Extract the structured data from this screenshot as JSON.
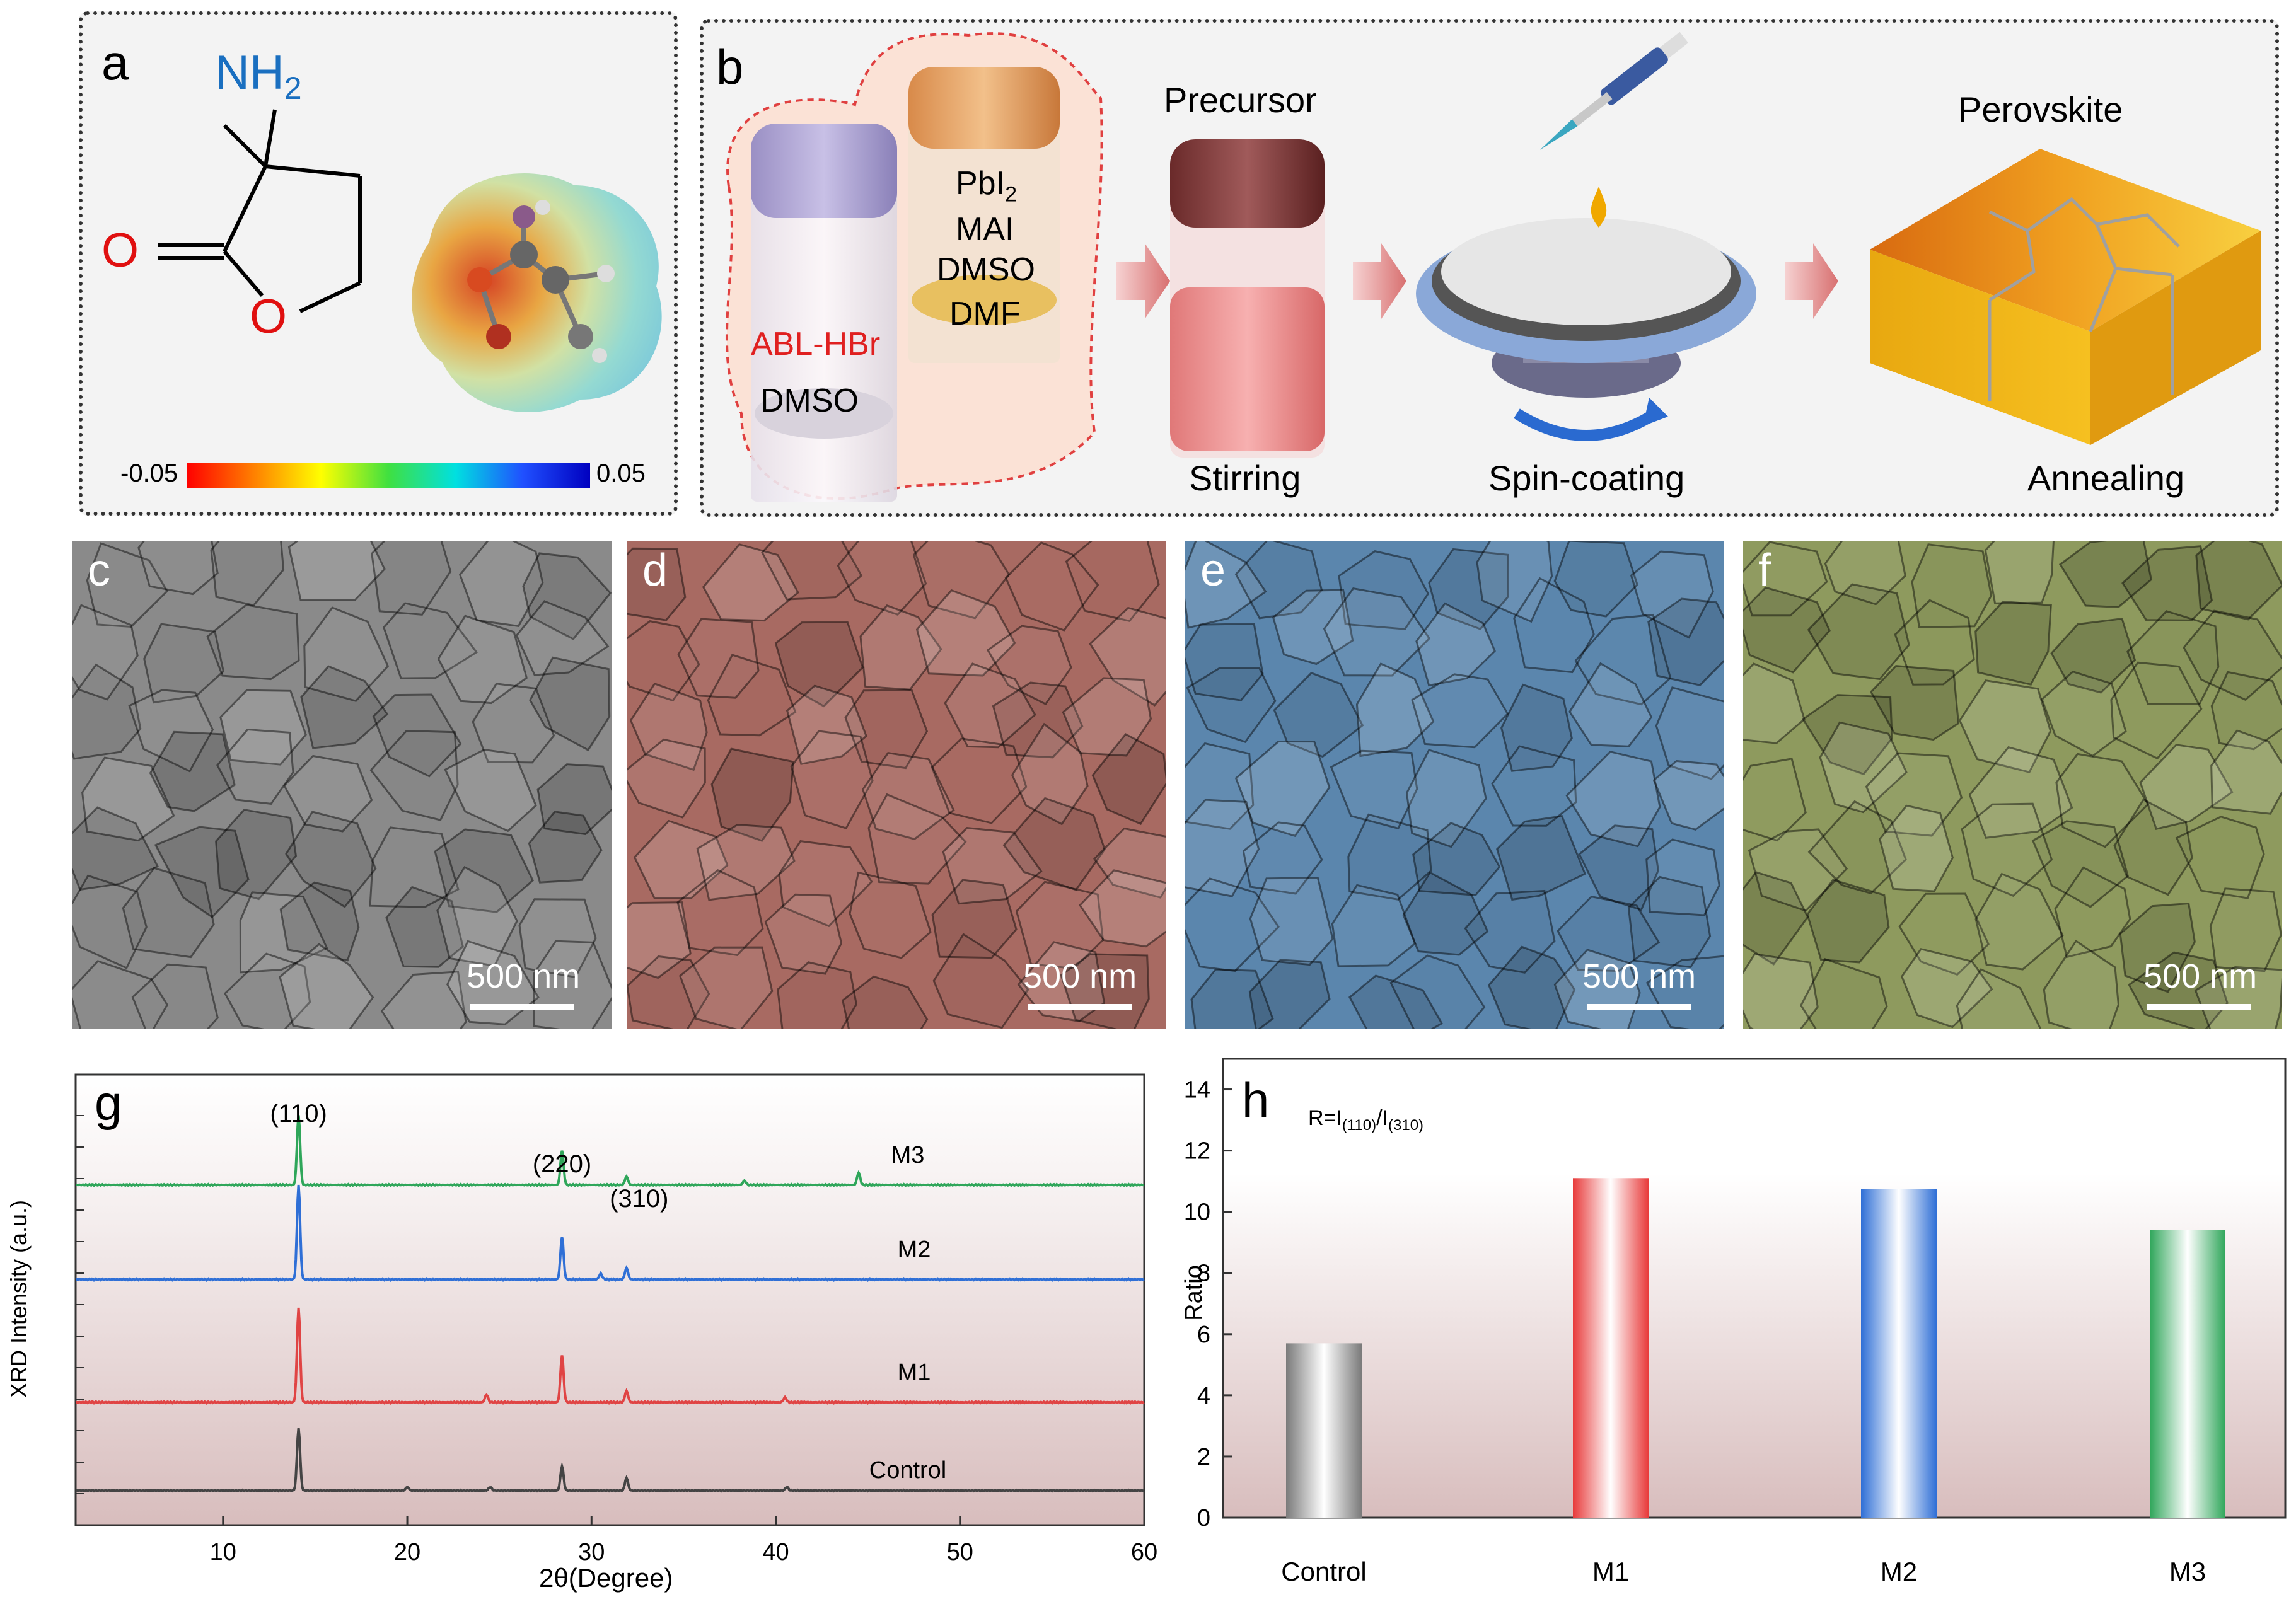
{
  "panel_a": {
    "label": "a",
    "nh2": "NH",
    "nh2_sub": "2",
    "o_carbonyl": "O",
    "o_ring": "O",
    "colorbar_min": "-0.05",
    "colorbar_max": "0.05"
  },
  "panel_b": {
    "label": "b",
    "vial1_text1": "ABL-HBr",
    "vial1_text2": "DMSO",
    "vial2_pbi": "PbI",
    "vial2_pbi_sub": "2",
    "vial2_mai": "MAI",
    "vial2_dmso": "DMSO",
    "vial2_dmf": "DMF",
    "precursor": "Precursor",
    "stirring": "Stirring",
    "spin": "Spin-coating",
    "perovskite": "Perovskite",
    "annealing": "Annealing"
  },
  "sem": [
    {
      "label": "c",
      "scale": "500 nm",
      "color": "#8a8a8a"
    },
    {
      "label": "d",
      "scale": "500 nm",
      "color": "#a86a62"
    },
    {
      "label": "e",
      "scale": "500 nm",
      "color": "#5b86ad"
    },
    {
      "label": "f",
      "scale": "500 nm",
      "color": "#8e9a5e"
    }
  ],
  "panel_g": {
    "label": "g",
    "chart_data": {
      "type": "line",
      "title": "",
      "xlabel": "2θ(Degree)",
      "ylabel": "XRD Intensity (a.u.)",
      "xlim": [
        2,
        60
      ],
      "xticks": [
        "10",
        "20",
        "30",
        "40",
        "50",
        "60"
      ],
      "peak_labels": [
        "(110)",
        "(220)",
        "(310)"
      ],
      "peak_positions": [
        14.1,
        28.4,
        31.9
      ],
      "series": [
        {
          "name": "Control",
          "color": "#444444",
          "peaks": [
            [
              14.1,
              0.9
            ],
            [
              28.4,
              0.35
            ],
            [
              31.9,
              0.18
            ],
            [
              20.0,
              0.05
            ],
            [
              24.5,
              0.05
            ],
            [
              40.6,
              0.05
            ]
          ]
        },
        {
          "name": "M1",
          "color": "#e04444",
          "peaks": [
            [
              14.1,
              1.0
            ],
            [
              28.4,
              0.5
            ],
            [
              31.9,
              0.12
            ],
            [
              24.3,
              0.08
            ],
            [
              40.5,
              0.05
            ]
          ]
        },
        {
          "name": "M2",
          "color": "#2f6fd6",
          "peaks": [
            [
              14.1,
              1.0
            ],
            [
              28.4,
              0.45
            ],
            [
              31.9,
              0.12
            ],
            [
              30.5,
              0.06
            ]
          ]
        },
        {
          "name": "M3",
          "color": "#2fa65a",
          "peaks": [
            [
              14.1,
              0.85
            ],
            [
              28.4,
              0.42
            ],
            [
              31.9,
              0.1
            ],
            [
              44.5,
              0.15
            ],
            [
              38.3,
              0.05
            ]
          ]
        }
      ]
    }
  },
  "panel_h": {
    "label": "h",
    "formula_r": "R=I",
    "formula_sub1": "(110)",
    "formula_slash": "/I",
    "formula_sub2": "(310)",
    "chart_data": {
      "type": "bar",
      "title": "",
      "categories": [
        "Control",
        "M1",
        "M2",
        "M3"
      ],
      "values": [
        5.7,
        11.1,
        10.75,
        9.4
      ],
      "colors": [
        "#7a7a7a",
        "#e83a3a",
        "#2f6fd6",
        "#2fa65a"
      ],
      "xlabel": "",
      "ylabel": "Ratio",
      "ylim": [
        0,
        15
      ],
      "yticks": [
        "0",
        "2",
        "4",
        "6",
        "8",
        "10",
        "12",
        "14"
      ]
    }
  }
}
